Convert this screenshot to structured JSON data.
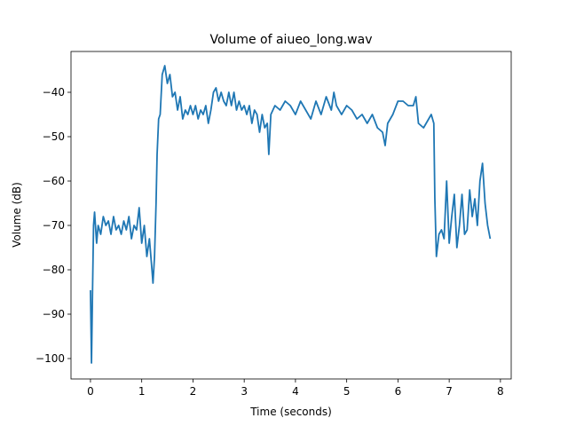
{
  "chart_data": {
    "type": "line",
    "title": "Volume of aiueo_long.wav",
    "xlabel": "Time (seconds)",
    "ylabel": "Volume (dB)",
    "xlim": [
      -0.38,
      8.21
    ],
    "ylim": [
      -104.6,
      -30.8
    ],
    "xticks": [
      0,
      1,
      2,
      3,
      4,
      5,
      6,
      7,
      8
    ],
    "yticks": [
      {
        "value": -100,
        "label": "−100"
      },
      {
        "value": -90,
        "label": "−90"
      },
      {
        "value": -80,
        "label": "−80"
      },
      {
        "value": -70,
        "label": "−70"
      },
      {
        "value": -60,
        "label": "−60"
      },
      {
        "value": -50,
        "label": "−50"
      },
      {
        "value": -40,
        "label": "−40"
      }
    ],
    "color": "#1f77b4",
    "x": [
      0.0,
      0.02,
      0.04,
      0.06,
      0.08,
      0.12,
      0.15,
      0.2,
      0.25,
      0.3,
      0.35,
      0.4,
      0.45,
      0.5,
      0.55,
      0.6,
      0.65,
      0.7,
      0.75,
      0.8,
      0.85,
      0.9,
      0.95,
      1.0,
      1.05,
      1.1,
      1.15,
      1.2,
      1.22,
      1.25,
      1.28,
      1.3,
      1.33,
      1.36,
      1.4,
      1.45,
      1.5,
      1.55,
      1.6,
      1.65,
      1.7,
      1.75,
      1.8,
      1.85,
      1.9,
      1.95,
      2.0,
      2.05,
      2.1,
      2.15,
      2.2,
      2.25,
      2.3,
      2.35,
      2.4,
      2.45,
      2.5,
      2.55,
      2.6,
      2.65,
      2.7,
      2.75,
      2.8,
      2.85,
      2.9,
      2.95,
      3.0,
      3.05,
      3.1,
      3.15,
      3.2,
      3.25,
      3.3,
      3.35,
      3.4,
      3.45,
      3.48,
      3.52,
      3.6,
      3.7,
      3.8,
      3.9,
      4.0,
      4.1,
      4.2,
      4.3,
      4.4,
      4.5,
      4.6,
      4.7,
      4.75,
      4.8,
      4.9,
      5.0,
      5.1,
      5.2,
      5.3,
      5.4,
      5.5,
      5.6,
      5.7,
      5.75,
      5.8,
      5.9,
      6.0,
      6.1,
      6.2,
      6.3,
      6.35,
      6.4,
      6.5,
      6.6,
      6.65,
      6.7,
      6.72,
      6.75,
      6.8,
      6.85,
      6.9,
      6.95,
      7.0,
      7.05,
      7.1,
      7.15,
      7.2,
      7.25,
      7.3,
      7.35,
      7.4,
      7.45,
      7.5,
      7.55,
      7.6,
      7.65,
      7.7,
      7.75,
      7.8
    ],
    "values": [
      -84.6,
      -101,
      -85,
      -70,
      -67,
      -74,
      -70,
      -72,
      -68,
      -70,
      -69,
      -72,
      -68,
      -71,
      -70,
      -72,
      -69,
      -71,
      -68,
      -73,
      -70,
      -71,
      -66,
      -74,
      -70,
      -77,
      -73,
      -80,
      -83,
      -77,
      -65,
      -54,
      -46,
      -45,
      -36,
      -34,
      -38,
      -36,
      -41,
      -40,
      -44,
      -41,
      -46,
      -44,
      -45,
      -43,
      -45,
      -43,
      -46,
      -44,
      -45,
      -43,
      -47,
      -44,
      -40,
      -39,
      -42,
      -40,
      -42,
      -43,
      -40,
      -43,
      -40,
      -44,
      -42,
      -44,
      -43,
      -45,
      -43,
      -47,
      -44,
      -45,
      -49,
      -45,
      -48,
      -47,
      -54,
      -45,
      -43,
      -44,
      -42,
      -43,
      -45,
      -42,
      -44,
      -46,
      -42,
      -45,
      -41,
      -44,
      -40,
      -43,
      -45,
      -43,
      -44,
      -46,
      -45,
      -47,
      -45,
      -48,
      -49,
      -52,
      -47,
      -45,
      -42,
      -42,
      -43,
      -43,
      -41,
      -47,
      -48,
      -46,
      -45,
      -47,
      -64,
      -77,
      -72,
      -71,
      -73,
      -60,
      -74,
      -68,
      -63,
      -75,
      -70,
      -63,
      -72,
      -71,
      -62,
      -68,
      -64,
      -70,
      -60,
      -56,
      -65,
      -70,
      -73
    ]
  }
}
